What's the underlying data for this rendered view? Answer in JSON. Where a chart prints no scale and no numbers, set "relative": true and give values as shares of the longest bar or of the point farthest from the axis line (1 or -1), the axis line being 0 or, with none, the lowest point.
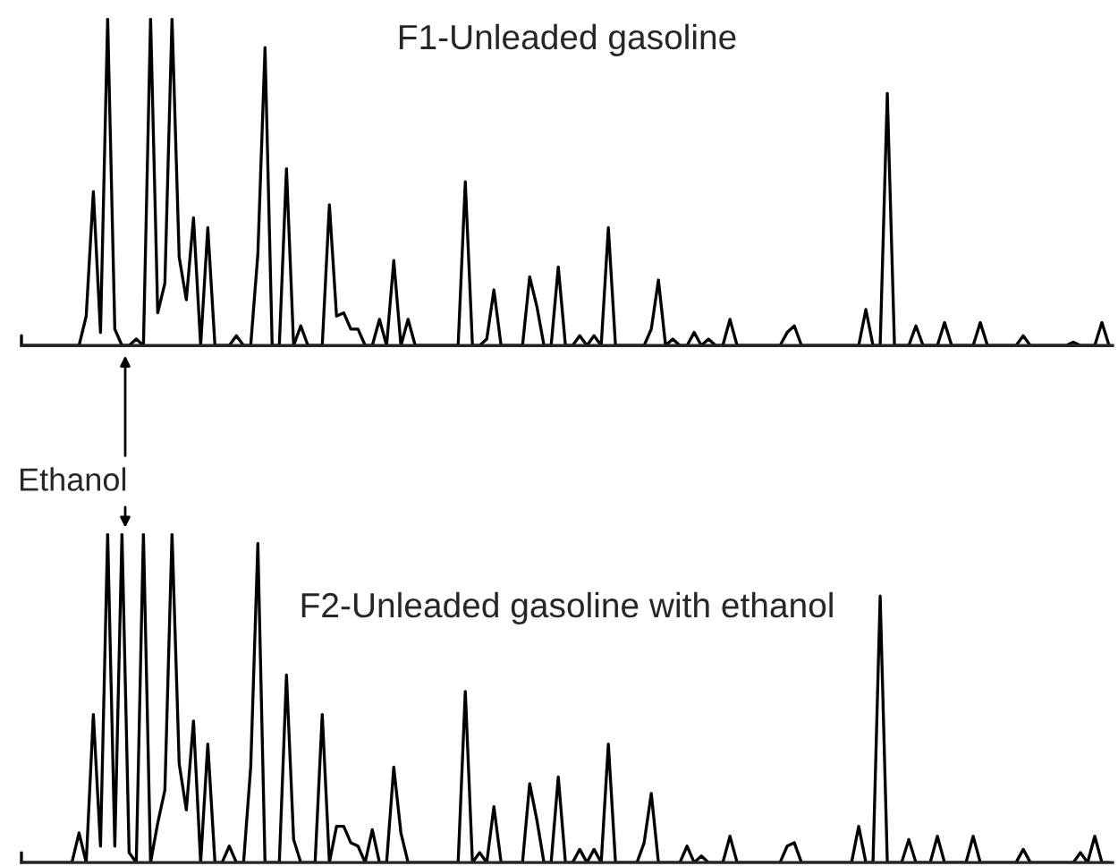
{
  "chart_data": [
    {
      "type": "line",
      "title": "F1-Unleaded gasoline",
      "relative": true,
      "categories": [
        null,
        null,
        null,
        null,
        null,
        null,
        null,
        null,
        null,
        null,
        null,
        null,
        null,
        null,
        null,
        null,
        null,
        null,
        null,
        null,
        null,
        null,
        null,
        null,
        null,
        null,
        null,
        null,
        null,
        null,
        null,
        null,
        null,
        null,
        null,
        null,
        null,
        null,
        null,
        null,
        null,
        null,
        null,
        null,
        null,
        null,
        null,
        null,
        null,
        null,
        null,
        null,
        null,
        null,
        null,
        null,
        null,
        null,
        null,
        null,
        null,
        null,
        null,
        null,
        null,
        null,
        null,
        null,
        null,
        null,
        null,
        null,
        null,
        null,
        null,
        null,
        null,
        null,
        null,
        null,
        null,
        null,
        null,
        null,
        null,
        null,
        null,
        null,
        null,
        null,
        null,
        null,
        null,
        null,
        null,
        null,
        null,
        null,
        null,
        null,
        null,
        null,
        null,
        null,
        null,
        null,
        null,
        null,
        null,
        null,
        null,
        null,
        null,
        null,
        null,
        null,
        null,
        null,
        null,
        null,
        null,
        null,
        null,
        null,
        null,
        null,
        null,
        null,
        null,
        null,
        null,
        null,
        null,
        null,
        null,
        null,
        null,
        null,
        null,
        null,
        null,
        null,
        null,
        null,
        null,
        null,
        null,
        null,
        null,
        null,
        null,
        null,
        null
      ],
      "series": [
        {
          "color": "#000000",
          "values": [
            0,
            0,
            0,
            0,
            0,
            0,
            0,
            0,
            0,
            0.09,
            0.47,
            0.04,
            1,
            0.05,
            0,
            0,
            0.02,
            0,
            1,
            0.1,
            0.19,
            1,
            0.27,
            0.14,
            0.39,
            0,
            0.36,
            0,
            0,
            0,
            0.03,
            0,
            0,
            0.28,
            0.91,
            0,
            0,
            0.54,
            0,
            0.06,
            0,
            0,
            0,
            0.43,
            0.09,
            0.1,
            0.05,
            0.05,
            0,
            0,
            0.08,
            0,
            0.26,
            0,
            0.08,
            0,
            0,
            0,
            0,
            0,
            0,
            0,
            0.5,
            0,
            0,
            0.02,
            0.17,
            0,
            0,
            0,
            0,
            0.21,
            0.12,
            0,
            0,
            0.24,
            0,
            0,
            0.03,
            0,
            0.03,
            0,
            0.36,
            0,
            0,
            0,
            0,
            0,
            0.05,
            0.2,
            0,
            0.02,
            0,
            0,
            0.04,
            0,
            0.02,
            0,
            0,
            0.08,
            0,
            0,
            0,
            0,
            0,
            0,
            0,
            0.04,
            0.06,
            0,
            0,
            0,
            0,
            0,
            0,
            0,
            0,
            0,
            0.11,
            0,
            0,
            0.77,
            0,
            0,
            0,
            0.06,
            0,
            0,
            0,
            0.07,
            0,
            0,
            0,
            0,
            0.07,
            0,
            0,
            0,
            0,
            0,
            0.03,
            0,
            0,
            0,
            0,
            0,
            0,
            0.01,
            0,
            0,
            0,
            0.07,
            0
          ]
        }
      ]
    },
    {
      "type": "line",
      "title": "F2-Unleaded gasoline with ethanol",
      "relative": true,
      "annotations": [
        "Ethanol"
      ],
      "categories": [
        null,
        null,
        null,
        null,
        null,
        null,
        null,
        null,
        null,
        null,
        null,
        null,
        null,
        null,
        null,
        null,
        null,
        null,
        null,
        null,
        null,
        null,
        null,
        null,
        null,
        null,
        null,
        null,
        null,
        null,
        null,
        null,
        null,
        null,
        null,
        null,
        null,
        null,
        null,
        null,
        null,
        null,
        null,
        null,
        null,
        null,
        null,
        null,
        null,
        null,
        null,
        null,
        null,
        null,
        null,
        null,
        null,
        null,
        null,
        null,
        null,
        null,
        null,
        null,
        null,
        null,
        null,
        null,
        null,
        null,
        null,
        null,
        null,
        null,
        null,
        null,
        null,
        null,
        null,
        null,
        null,
        null,
        null,
        null,
        null,
        null,
        null,
        null,
        null,
        null,
        null,
        null,
        null,
        null,
        null,
        null,
        null,
        null,
        null,
        null,
        null,
        null,
        null,
        null,
        null,
        null,
        null,
        null,
        null,
        null,
        null,
        null,
        null,
        null,
        null,
        null,
        null,
        null,
        null,
        null,
        null,
        null,
        null,
        null,
        null,
        null,
        null,
        null,
        null,
        null,
        null,
        null,
        null,
        null,
        null,
        null,
        null,
        null,
        null,
        null,
        null,
        null,
        null,
        null,
        null,
        null,
        null,
        null,
        null,
        null,
        null,
        null,
        null
      ],
      "series": [
        {
          "color": "#000000",
          "values": [
            0,
            0,
            0,
            0,
            0,
            0,
            0,
            0,
            0.09,
            0,
            0.45,
            0.05,
            1,
            0.05,
            1,
            0.03,
            0,
            1,
            0,
            0.12,
            0.22,
            1,
            0.3,
            0.16,
            0.43,
            0,
            0.36,
            0,
            0,
            0.05,
            0,
            0,
            0.29,
            0.97,
            0,
            0,
            0,
            0.57,
            0.07,
            0,
            0,
            0,
            0.45,
            0,
            0.11,
            0.11,
            0.06,
            0.05,
            0,
            0.1,
            0,
            0,
            0.29,
            0.09,
            0,
            0,
            0,
            0,
            0,
            0,
            0,
            0,
            0.52,
            0,
            0.03,
            0,
            0.17,
            0,
            0,
            0,
            0,
            0.24,
            0.13,
            0,
            0,
            0.26,
            0,
            0,
            0.04,
            0,
            0.04,
            0,
            0.36,
            0,
            0,
            0,
            0,
            0.06,
            0.21,
            0,
            0,
            0,
            0,
            0.05,
            0,
            0.02,
            0,
            0,
            0,
            0.08,
            0,
            0,
            0,
            0,
            0,
            0,
            0,
            0.05,
            0.06,
            0,
            0,
            0,
            0,
            0,
            0,
            0,
            0,
            0.11,
            0,
            0,
            0.81,
            0,
            0,
            0,
            0.07,
            0,
            0,
            0,
            0.08,
            0,
            0,
            0,
            0,
            0.08,
            0,
            0,
            0,
            0,
            0,
            0,
            0.04,
            0,
            0,
            0,
            0,
            0,
            0,
            0,
            0.03,
            0,
            0.08,
            0,
            0
          ]
        }
      ]
    }
  ]
}
